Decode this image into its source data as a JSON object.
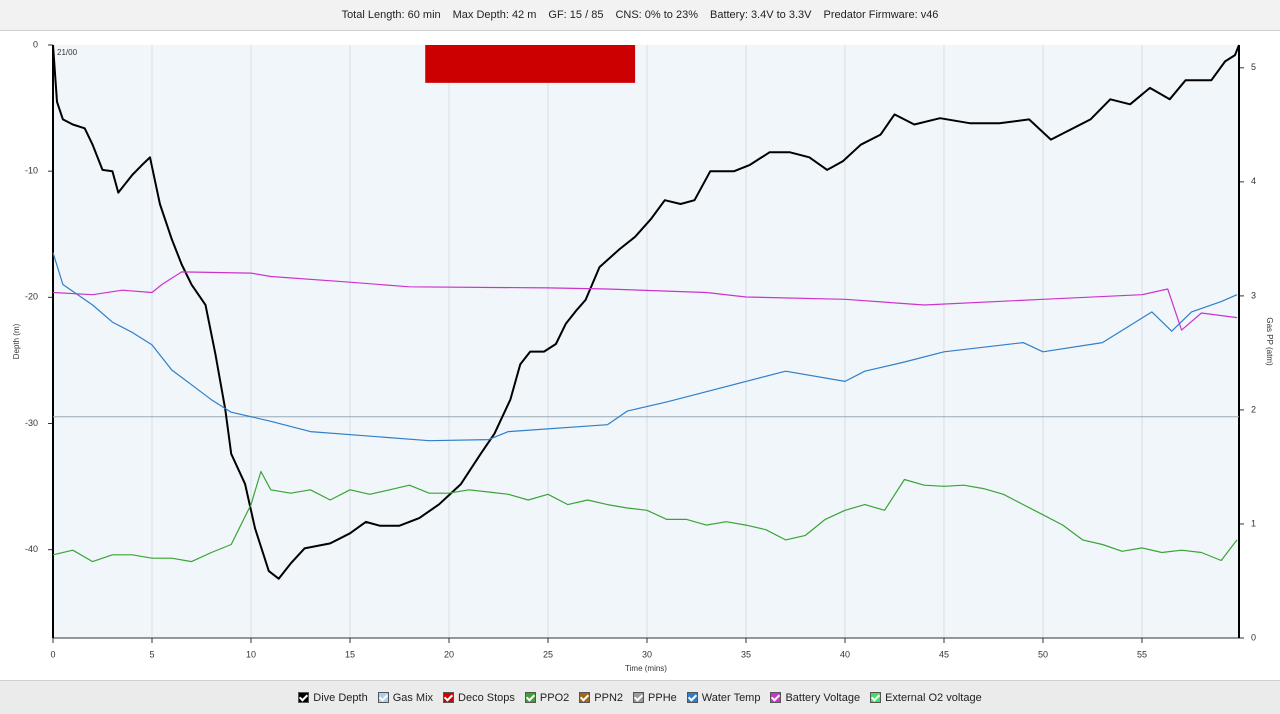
{
  "chart_data": {
    "type": "line",
    "header": [
      "Total Length: 60 min",
      "Max Depth: 42 m",
      "GF: 15 / 85",
      "CNS: 0% to 23%",
      "Battery: 3.4V to 3.3V",
      "Predator Firmware: v46"
    ],
    "plot_label": "21/00",
    "xlabel": "Time (mins)",
    "ylabel": "Depth (m)",
    "y2label": "Gas PP (atm)",
    "xlim": [
      0,
      59.9
    ],
    "xticks": [
      0,
      5,
      10,
      15,
      20,
      25,
      30,
      35,
      40,
      45,
      50,
      55
    ],
    "ylim": [
      -47,
      0
    ],
    "yticks": [
      -40,
      -30,
      -20,
      -10,
      0
    ],
    "y2lim": [
      0,
      5.2
    ],
    "y2ticks": [
      0,
      1,
      2,
      3,
      4,
      5
    ],
    "grid": true,
    "hline_y2": 1.94,
    "series": [
      {
        "name": "Dive Depth",
        "color": "#000000",
        "axis": "y",
        "x": [
          0,
          0.2,
          0.5,
          1.0,
          1.6,
          2.0,
          2.5,
          3.0,
          3.3,
          4.0,
          4.5,
          4.9,
          5.4,
          6.0,
          6.5,
          7.0,
          7.7,
          8.2,
          8.7,
          9.0,
          9.7,
          10.2,
          10.9,
          11.4,
          12.0,
          12.7,
          14.0,
          15.0,
          15.8,
          16.5,
          17.5,
          18.5,
          19.5,
          20.6,
          21.6,
          22.3,
          23.1,
          23.6,
          24.1,
          24.8,
          25.4,
          25.9,
          26.4,
          26.9,
          27.6,
          28.6,
          29.4,
          30.2,
          30.9,
          31.7,
          32.4,
          33.2,
          34.4,
          35.2,
          36.2,
          37.2,
          38.2,
          39.1,
          39.9,
          40.8,
          41.8,
          42.5,
          43.5,
          44.8,
          46.3,
          47.8,
          49.3,
          50.4,
          51.4,
          52.4,
          53.4,
          54.4,
          55.4,
          56.4,
          57.2,
          58.5,
          59.2,
          59.7,
          59.9
        ],
        "values": [
          0,
          -4.5,
          -5.9,
          -6.3,
          -6.6,
          -7.9,
          -9.9,
          -10,
          -11.7,
          -10.3,
          -9.5,
          -8.9,
          -12.6,
          -15.4,
          -17.4,
          -19,
          -20.6,
          -24.5,
          -28.9,
          -32.4,
          -34.8,
          -38.3,
          -41.7,
          -42.3,
          -41.1,
          -39.9,
          -39.5,
          -38.7,
          -37.8,
          -38.1,
          -38.1,
          -37.5,
          -36.4,
          -34.8,
          -32.4,
          -30.8,
          -28.1,
          -25.3,
          -24.3,
          -24.3,
          -23.7,
          -22.1,
          -21.1,
          -20.2,
          -17.6,
          -16.2,
          -15.2,
          -13.8,
          -12.3,
          -12.6,
          -12.3,
          -10,
          -10,
          -9.5,
          -8.5,
          -8.5,
          -8.9,
          -9.9,
          -9.2,
          -7.9,
          -7.1,
          -5.5,
          -6.3,
          -5.8,
          -6.2,
          -6.2,
          -5.9,
          -7.5,
          -6.7,
          -5.9,
          -4.3,
          -4.7,
          -3.4,
          -4.3,
          -2.8,
          -2.8,
          -1.3,
          -0.8,
          0
        ]
      },
      {
        "name": "Gas Mix",
        "color": "#a8d0f0"
      },
      {
        "name": "Deco Stops",
        "color": "#cc0000",
        "stops": [
          {
            "x": [
              18.8,
              29.4
            ],
            "depth": -3
          }
        ]
      },
      {
        "name": "PPO2",
        "color": "#3aa435",
        "axis": "y2",
        "x": [
          0,
          1,
          2,
          3,
          4,
          5,
          6,
          7,
          8,
          9,
          10,
          10.5,
          11,
          12,
          13,
          14,
          15,
          16,
          17,
          18,
          19,
          20,
          21,
          22,
          23,
          24,
          25,
          26,
          27,
          28,
          29,
          30,
          31,
          32,
          33,
          34,
          35,
          36,
          37,
          38,
          39,
          40,
          41,
          42,
          43,
          44,
          45,
          46,
          47,
          48,
          49,
          50,
          51,
          52,
          53,
          54,
          55,
          56,
          57,
          58,
          59,
          59.8
        ],
        "values": [
          0.73,
          0.77,
          0.67,
          0.73,
          0.73,
          0.7,
          0.7,
          0.67,
          0.75,
          0.82,
          1.17,
          1.46,
          1.3,
          1.27,
          1.3,
          1.21,
          1.3,
          1.26,
          1.3,
          1.34,
          1.27,
          1.27,
          1.3,
          1.28,
          1.26,
          1.21,
          1.26,
          1.17,
          1.21,
          1.17,
          1.14,
          1.12,
          1.04,
          1.04,
          0.99,
          1.02,
          0.99,
          0.95,
          0.86,
          0.9,
          1.04,
          1.12,
          1.17,
          1.12,
          1.39,
          1.34,
          1.33,
          1.34,
          1.31,
          1.26,
          1.17,
          1.08,
          0.99,
          0.86,
          0.82,
          0.76,
          0.79,
          0.75,
          0.77,
          0.75,
          0.68,
          0.86
        ]
      },
      {
        "name": "PPN2",
        "color": "#a0661a"
      },
      {
        "name": "PPHe",
        "color": "#9a9a9a"
      },
      {
        "name": "Water Temp",
        "color": "#2f7fc8",
        "axis": "y2",
        "x": [
          0,
          0.5,
          2,
          3,
          4,
          5,
          6,
          7,
          8,
          9,
          11,
          13,
          19,
          22,
          23,
          28,
          29,
          31,
          33,
          35,
          37,
          40,
          41,
          43,
          45,
          49,
          50,
          53,
          55.5,
          56.5,
          57.5,
          59,
          59.8
        ],
        "values": [
          3.38,
          3.1,
          2.92,
          2.77,
          2.68,
          2.57,
          2.35,
          2.22,
          2.09,
          1.98,
          1.9,
          1.81,
          1.73,
          1.74,
          1.81,
          1.87,
          1.99,
          2.07,
          2.16,
          2.25,
          2.34,
          2.25,
          2.34,
          2.42,
          2.51,
          2.59,
          2.51,
          2.59,
          2.86,
          2.69,
          2.86,
          2.95,
          3.01
        ]
      },
      {
        "name": "Battery Voltage",
        "color": "#cc33cc",
        "axis": "y2",
        "x": [
          0,
          2,
          3.5,
          5,
          5.5,
          6.5,
          10,
          11,
          15,
          18,
          25,
          28,
          33,
          35,
          40,
          44,
          50,
          55,
          56.3,
          57,
          58,
          59.8
        ],
        "values": [
          3.03,
          3.01,
          3.05,
          3.03,
          3.1,
          3.21,
          3.2,
          3.17,
          3.12,
          3.08,
          3.07,
          3.06,
          3.03,
          2.99,
          2.97,
          2.92,
          2.97,
          3.01,
          3.06,
          2.7,
          2.85,
          2.81
        ]
      },
      {
        "name": "External O2 voltage",
        "color": "#44dd66"
      }
    ]
  }
}
